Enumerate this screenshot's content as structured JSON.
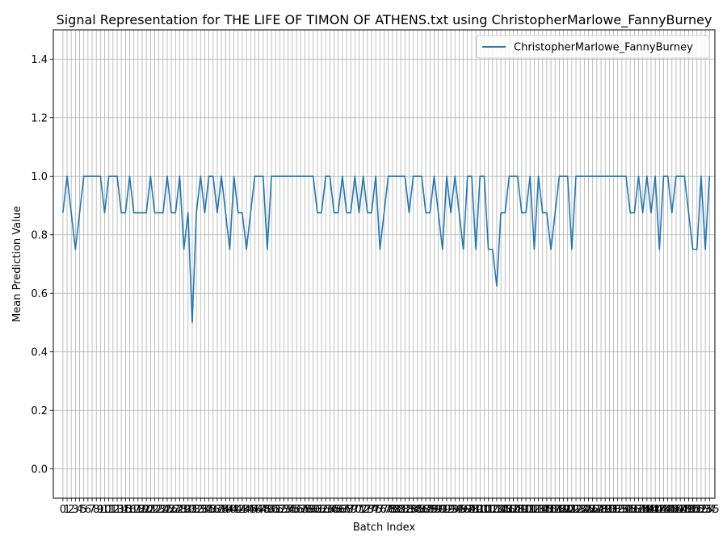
{
  "chart_data": {
    "type": "line",
    "title": "Signal Representation for THE LIFE OF TIMON OF ATHENS.txt using ChristopherMarlowe_FannyBurney",
    "xlabel": "Batch Index",
    "ylabel": "Mean Prediction Value",
    "ylim": [
      -0.1,
      1.5
    ],
    "xlim": [
      -2.3,
      156.3
    ],
    "yticks": [
      "0.0",
      "0.2",
      "0.4",
      "0.6",
      "0.8",
      "1.0",
      "1.2",
      "1.4"
    ],
    "grid": true,
    "legend_position": "top-right",
    "series": [
      {
        "name": "ChristopherMarlowe_FannyBurney",
        "color": "#1f77b4",
        "values": [
          0.875,
          1.0,
          0.875,
          0.75,
          0.875,
          1.0,
          1.0,
          1.0,
          1.0,
          1.0,
          0.875,
          1.0,
          1.0,
          1.0,
          0.875,
          0.875,
          1.0,
          0.875,
          0.875,
          0.875,
          0.875,
          1.0,
          0.875,
          0.875,
          0.875,
          1.0,
          0.875,
          0.875,
          1.0,
          0.75,
          0.875,
          0.5,
          0.875,
          1.0,
          0.875,
          1.0,
          1.0,
          0.875,
          1.0,
          0.875,
          0.75,
          1.0,
          0.875,
          0.875,
          0.75,
          0.875,
          1.0,
          1.0,
          1.0,
          0.75,
          1.0,
          1.0,
          1.0,
          1.0,
          1.0,
          1.0,
          1.0,
          1.0,
          1.0,
          1.0,
          1.0,
          0.875,
          0.875,
          1.0,
          1.0,
          0.875,
          0.875,
          1.0,
          0.875,
          0.875,
          1.0,
          0.875,
          1.0,
          0.875,
          0.875,
          1.0,
          0.75,
          0.875,
          1.0,
          1.0,
          1.0,
          1.0,
          1.0,
          0.875,
          1.0,
          1.0,
          1.0,
          0.875,
          0.875,
          1.0,
          0.875,
          0.75,
          1.0,
          0.875,
          1.0,
          0.875,
          0.75,
          1.0,
          1.0,
          0.75,
          1.0,
          1.0,
          0.75,
          0.75,
          0.625,
          0.875,
          0.875,
          1.0,
          1.0,
          1.0,
          0.875,
          0.875,
          1.0,
          0.75,
          1.0,
          0.875,
          0.875,
          0.75,
          0.875,
          1.0,
          1.0,
          1.0,
          0.75,
          1.0,
          1.0,
          1.0,
          1.0,
          1.0,
          1.0,
          1.0,
          1.0,
          1.0,
          1.0,
          1.0,
          1.0,
          1.0,
          0.875,
          0.875,
          1.0,
          0.875,
          1.0,
          0.875,
          1.0,
          0.75,
          1.0,
          1.0,
          0.875,
          1.0,
          1.0,
          1.0,
          0.875,
          0.75,
          0.75,
          1.0,
          0.75,
          1.0
        ]
      }
    ]
  }
}
